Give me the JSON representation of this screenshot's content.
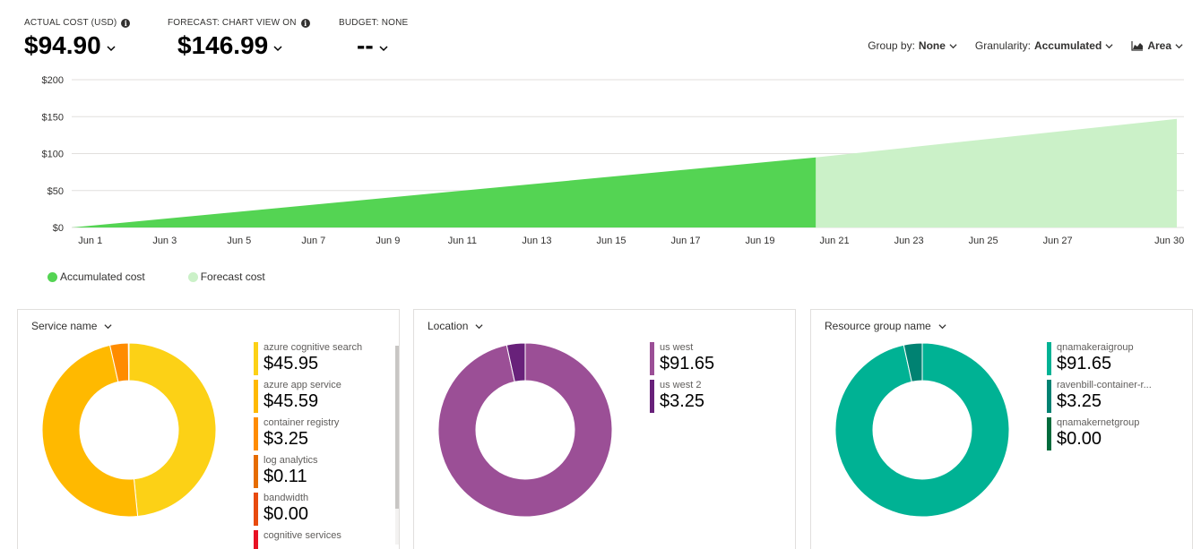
{
  "kpis": [
    {
      "label": "ACTUAL COST (USD)",
      "value": "$94.90",
      "has_info": true
    },
    {
      "label": "FORECAST: CHART VIEW ON",
      "value": "$146.99",
      "has_info": true
    },
    {
      "label": "BUDGET: NONE",
      "value": "--",
      "has_info": false
    }
  ],
  "toolbar": {
    "group_by_label": "Group by:",
    "group_by_value": "None",
    "granularity_label": "Granularity:",
    "granularity_value": "Accumulated",
    "chart_type_label": "Area"
  },
  "legend": {
    "accumulated": "Accumulated cost",
    "forecast": "Forecast cost"
  },
  "colors": {
    "accumulated": "#54d453",
    "forecast": "#cbf1c8"
  },
  "chart_data": {
    "type": "area",
    "x_ticks": [
      "Jun 1",
      "Jun 3",
      "Jun 5",
      "Jun 7",
      "Jun 9",
      "Jun 11",
      "Jun 13",
      "Jun 15",
      "Jun 17",
      "Jun 19",
      "Jun 21",
      "Jun 23",
      "Jun 25",
      "Jun 27",
      "Jun 30"
    ],
    "y_ticks": [
      "$0",
      "$50",
      "$100",
      "$150",
      "$200"
    ],
    "ylim": [
      0,
      200
    ],
    "series": [
      {
        "name": "Accumulated cost",
        "x": [
          0.5,
          20.5
        ],
        "y": [
          0,
          94.9
        ]
      },
      {
        "name": "Forecast cost",
        "x": [
          20.5,
          30.2
        ],
        "y": [
          94.9,
          146.99
        ]
      }
    ]
  },
  "cards": [
    {
      "title": "Service name",
      "items": [
        {
          "name": "azure cognitive search",
          "value": "$45.95",
          "amount": 45.95,
          "color": "#fcd116"
        },
        {
          "name": "azure app service",
          "value": "$45.59",
          "amount": 45.59,
          "color": "#ffb900"
        },
        {
          "name": "container registry",
          "value": "$3.25",
          "amount": 3.25,
          "color": "#ff8c00"
        },
        {
          "name": "log analytics",
          "value": "$0.11",
          "amount": 0.11,
          "color": "#e66c00"
        },
        {
          "name": "bandwidth",
          "value": "$0.00",
          "amount": 0,
          "color": "#e84a0e"
        },
        {
          "name": "cognitive services",
          "value": "",
          "amount": 0,
          "color": "#e81123"
        }
      ],
      "has_scrollbar": true
    },
    {
      "title": "Location",
      "items": [
        {
          "name": "us west",
          "value": "$91.65",
          "amount": 91.65,
          "color": "#9b4f96"
        },
        {
          "name": "us west 2",
          "value": "$3.25",
          "amount": 3.25,
          "color": "#68217a"
        }
      ],
      "has_scrollbar": false
    },
    {
      "title": "Resource group name",
      "items": [
        {
          "name": "qnamakeraigroup",
          "value": "$91.65",
          "amount": 91.65,
          "color": "#00b294"
        },
        {
          "name": "ravenbill-container-r...",
          "value": "$3.25",
          "amount": 3.25,
          "color": "#008272"
        },
        {
          "name": "qnamakernetgroup",
          "value": "$0.00",
          "amount": 0,
          "color": "#006b3c"
        }
      ],
      "has_scrollbar": false
    }
  ]
}
